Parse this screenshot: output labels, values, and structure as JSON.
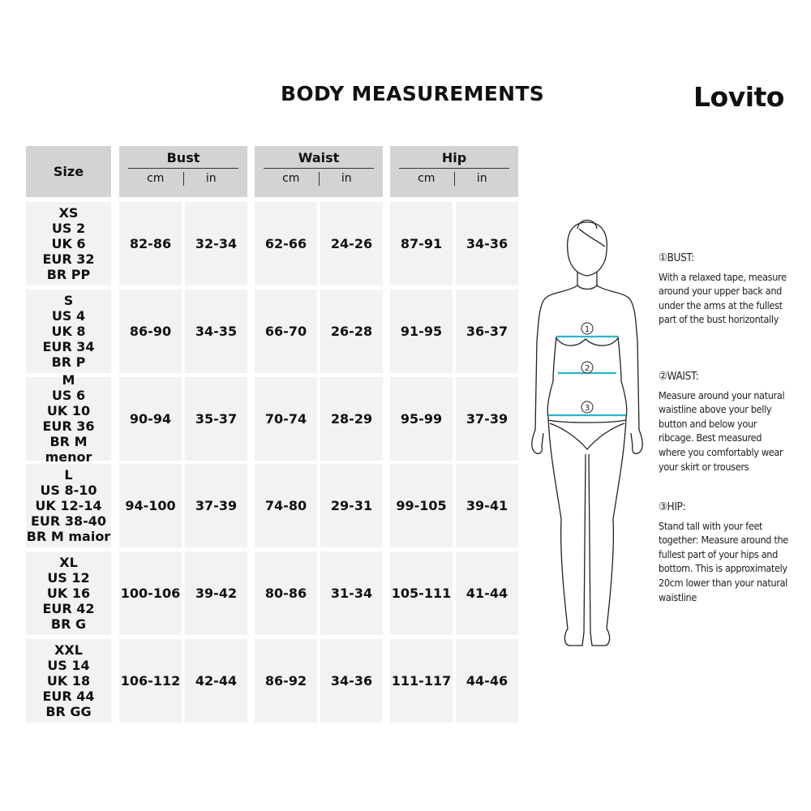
{
  "header": {
    "title": "BODY MEASUREMENTS",
    "logo": "Lovito"
  },
  "table": {
    "size_header": "Size",
    "groups": [
      {
        "name": "Bust",
        "units": [
          "cm",
          "in"
        ]
      },
      {
        "name": "Waist",
        "units": [
          "cm",
          "in"
        ]
      },
      {
        "name": "Hip",
        "units": [
          "cm",
          "in"
        ]
      }
    ],
    "rows": [
      {
        "size": [
          "XS",
          "US 2",
          "UK 6",
          "EUR 32",
          "BR PP"
        ],
        "values": [
          "82-86",
          "32-34",
          "62-66",
          "24-26",
          "87-91",
          "34-36"
        ]
      },
      {
        "size": [
          "S",
          "US 4",
          "UK 8",
          "EUR 34",
          "BR P"
        ],
        "values": [
          "86-90",
          "34-35",
          "66-70",
          "26-28",
          "91-95",
          "36-37"
        ]
      },
      {
        "size": [
          "M",
          "US 6",
          "UK 10",
          "EUR 36",
          "BR M menor"
        ],
        "values": [
          "90-94",
          "35-37",
          "70-74",
          "28-29",
          "95-99",
          "37-39"
        ]
      },
      {
        "size": [
          "L",
          "US 8-10",
          "UK 12-14",
          "EUR 38-40",
          "BR M maior"
        ],
        "values": [
          "94-100",
          "37-39",
          "74-80",
          "29-31",
          "99-105",
          "39-41"
        ]
      },
      {
        "size": [
          "XL",
          "US 12",
          "UK 16",
          "EUR 42",
          "BR G"
        ],
        "values": [
          "100-106",
          "39-42",
          "80-86",
          "31-34",
          "105-111",
          "41-44"
        ]
      },
      {
        "size": [
          "XXL",
          "US 14",
          "UK 18",
          "EUR 44",
          "BR GG"
        ],
        "values": [
          "106-112",
          "42-44",
          "86-92",
          "34-36",
          "111-117",
          "44-46"
        ]
      }
    ]
  },
  "figure": {
    "markers": [
      "1",
      "2",
      "3"
    ],
    "tape_color": "#2bb5c9"
  },
  "guide": [
    {
      "heading": "①BUST:",
      "text": "With a relaxed tape, measure around your upper back and under the arms at the fullest part of the bust horizontally"
    },
    {
      "heading": "②WAIST:",
      "text": "Measure around your natural waistline above your belly button and below your ribcage. Best measured where you comfortably wear your skirt or trousers"
    },
    {
      "heading": "③HIP:",
      "text": "Stand tall with your feet together: Measure around the fullest part of your hips and bottom. This is approximately 20cm lower than your natural waistline"
    }
  ],
  "colors": {
    "header_bg": "#d3d3d3",
    "cell_bg": "#f2f2f2"
  }
}
